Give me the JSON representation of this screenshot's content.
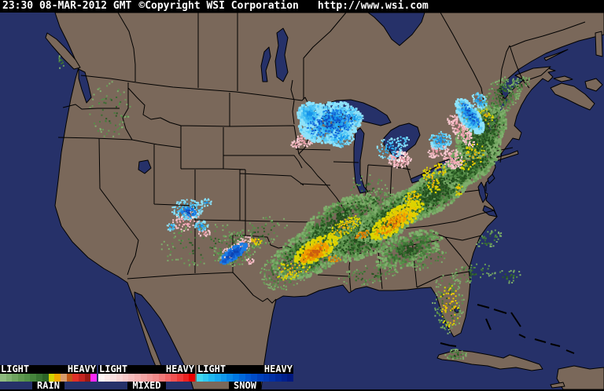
{
  "header": {
    "timestamp": "23:30 08-MAR-2012 GMT",
    "copyright": "©Copyright WSI Corporation",
    "url": "http://www.wsi.com"
  },
  "colors": {
    "header_bg": "#000000",
    "header_text": "#ffffff",
    "land": "#7a685a",
    "water": "#263169",
    "border": "#000000"
  },
  "legend": {
    "light_label": "LIGHT",
    "heavy_label": "HEAVY",
    "groups": [
      {
        "label": "RAIN",
        "colors": [
          "#8fbc7f",
          "#7fb06f",
          "#6fa45f",
          "#5f984f",
          "#539047",
          "#45843b",
          "#387431",
          "#2c6427",
          "#d4d400",
          "#f0a800",
          "#d89c6c",
          "#c05818",
          "#e03028",
          "#c42420",
          "#9c1814",
          "#f828f8"
        ]
      },
      {
        "label": "MIXED",
        "colors": [
          "#fcf4f4",
          "#fbe9e9",
          "#fadede",
          "#f9d3d3",
          "#f8c8c8",
          "#f7bdbd",
          "#f6b1b1",
          "#f5a5a5",
          "#f49898",
          "#f38b8b",
          "#f27a7a",
          "#f16666",
          "#f05252",
          "#ee3a3a",
          "#ec2222",
          "#e80000"
        ]
      },
      {
        "label": "SNOW",
        "colors": [
          "#40d8f0",
          "#30c8f0",
          "#20b8f0",
          "#18a8f0",
          "#1098ec",
          "#0888e8",
          "#0078e4",
          "#0068dc",
          "#0058d4",
          "#004cc8",
          "#0040bc",
          "#0038b0",
          "#0030a4",
          "#002898",
          "#00208c",
          "#001880"
        ]
      }
    ]
  },
  "radar": {
    "palettes": {
      "g": [
        "#7fae6c",
        "#699e58",
        "#558e48",
        "#467e3c",
        "#386e30",
        "#2c5c26",
        "#24501f"
      ],
      "gd": [
        "#2a5a22",
        "#1f4a1b",
        "#244f1e"
      ],
      "y": [
        "#dcd400",
        "#e9c800",
        "#f0b400"
      ],
      "o": [
        "#f09c00",
        "#e07c00",
        "#cc5c10"
      ],
      "p": [
        "#f8c8d0",
        "#f4b0bc",
        "#f09cac"
      ],
      "w": [
        "#f8eeee",
        "#fce4e4"
      ],
      "c": [
        "#8ee2fa",
        "#55c8f6",
        "#2fb0f0",
        "#1692ea"
      ],
      "b": [
        "#1c7ce4",
        "#1058cc",
        "#0c44b4"
      ]
    },
    "blobs": [
      [
        140,
        142,
        26,
        38,
        0,
        "g",
        70,
        2
      ],
      [
        78,
        78,
        4,
        10,
        0,
        "g",
        12,
        2
      ],
      [
        258,
        312,
        55,
        28,
        -10,
        "g",
        110,
        2
      ],
      [
        300,
        316,
        30,
        22,
        -30,
        "g",
        160,
        2
      ],
      [
        330,
        298,
        38,
        18,
        -25,
        "g",
        80,
        2
      ],
      [
        362,
        345,
        33,
        24,
        -20,
        "g",
        190,
        2
      ],
      [
        395,
        322,
        52,
        28,
        -25,
        "g",
        650,
        3
      ],
      [
        432,
        282,
        55,
        25,
        -30,
        "g",
        650,
        3
      ],
      [
        468,
        300,
        55,
        24,
        -28,
        "g",
        750,
        3
      ],
      [
        520,
        318,
        45,
        20,
        -22,
        "g",
        380,
        3
      ],
      [
        470,
        350,
        40,
        12,
        -10,
        "g",
        90,
        2
      ],
      [
        468,
        242,
        28,
        20,
        0,
        "g",
        55,
        2
      ],
      [
        470,
        262,
        40,
        16,
        -30,
        "g",
        140,
        2
      ],
      [
        505,
        272,
        60,
        22,
        -33,
        "g",
        850,
        3
      ],
      [
        555,
        243,
        55,
        24,
        -36,
        "g",
        850,
        3
      ],
      [
        600,
        205,
        45,
        24,
        -42,
        "g",
        750,
        3
      ],
      [
        612,
        168,
        40,
        26,
        -50,
        "g",
        650,
        3
      ],
      [
        638,
        122,
        28,
        20,
        -45,
        "g",
        240,
        2
      ],
      [
        660,
        108,
        16,
        8,
        -30,
        "g",
        40,
        2
      ],
      [
        570,
        385,
        20,
        40,
        0,
        "g",
        130,
        2
      ],
      [
        600,
        348,
        26,
        12,
        -10,
        "g",
        55,
        2
      ],
      [
        645,
        352,
        22,
        9,
        0,
        "g",
        30,
        2
      ],
      [
        580,
        452,
        14,
        7,
        0,
        "g",
        45,
        2
      ],
      [
        622,
        305,
        18,
        10,
        -30,
        "g",
        45,
        2
      ],
      [
        545,
        330,
        25,
        12,
        -20,
        "g",
        65,
        2
      ],
      [
        505,
        272,
        50,
        16,
        -33,
        "gd",
        230,
        2
      ],
      [
        555,
        243,
        45,
        18,
        -36,
        "gd",
        230,
        2
      ],
      [
        600,
        205,
        38,
        18,
        -42,
        "gd",
        200,
        2
      ],
      [
        612,
        168,
        32,
        20,
        -50,
        "gd",
        180,
        2
      ],
      [
        432,
        282,
        40,
        18,
        -30,
        "gd",
        160,
        2
      ],
      [
        395,
        322,
        40,
        20,
        -25,
        "gd",
        160,
        2
      ],
      [
        468,
        300,
        45,
        18,
        -28,
        "gd",
        180,
        2
      ],
      [
        372,
        342,
        25,
        13,
        -20,
        "y",
        65,
        2
      ],
      [
        402,
        318,
        30,
        13,
        -28,
        "y",
        240,
        3
      ],
      [
        438,
        290,
        25,
        10,
        -30,
        "y",
        110,
        2
      ],
      [
        505,
        280,
        40,
        14,
        -33,
        "y",
        300,
        3
      ],
      [
        525,
        252,
        12,
        10,
        -30,
        "y",
        55,
        2
      ],
      [
        549,
        230,
        9,
        18,
        -25,
        "y",
        65,
        2
      ],
      [
        560,
        215,
        6,
        10,
        -40,
        "y",
        28,
        2
      ],
      [
        600,
        200,
        20,
        14,
        -45,
        "y",
        55,
        2
      ],
      [
        583,
        242,
        6,
        8,
        0,
        "y",
        18,
        2
      ],
      [
        572,
        390,
        13,
        28,
        0,
        "y",
        55,
        2
      ],
      [
        325,
        307,
        9,
        5,
        0,
        "y",
        22,
        2
      ],
      [
        618,
        148,
        8,
        12,
        -40,
        "y",
        22,
        2
      ],
      [
        400,
        322,
        20,
        8,
        -28,
        "o",
        100,
        3
      ],
      [
        497,
        287,
        24,
        8,
        -34,
        "o",
        85,
        2
      ],
      [
        425,
        330,
        8,
        5,
        0,
        "o",
        22,
        2
      ],
      [
        460,
        300,
        10,
        5,
        -30,
        "o",
        28,
        2
      ],
      [
        388,
        178,
        11,
        9,
        0,
        "p",
        65,
        2
      ],
      [
        376,
        184,
        6,
        5,
        0,
        "p",
        22,
        2
      ],
      [
        508,
        203,
        15,
        11,
        0,
        "p",
        120,
        2
      ],
      [
        556,
        192,
        13,
        9,
        -20,
        "p",
        75,
        2
      ],
      [
        586,
        166,
        9,
        26,
        -38,
        "p",
        150,
        2
      ],
      [
        576,
        203,
        12,
        14,
        -30,
        "p",
        110,
        2
      ],
      [
        237,
        281,
        20,
        12,
        -20,
        "p",
        65,
        2
      ],
      [
        300,
        317,
        24,
        9,
        -35,
        "p",
        95,
        2
      ],
      [
        260,
        296,
        8,
        6,
        0,
        "p",
        22,
        2
      ],
      [
        318,
        333,
        6,
        4,
        0,
        "p",
        14,
        2
      ],
      [
        240,
        272,
        12,
        8,
        0,
        "w",
        28,
        2
      ],
      [
        296,
        320,
        16,
        6,
        -35,
        "w",
        22,
        2
      ],
      [
        510,
        200,
        8,
        6,
        0,
        "w",
        18,
        2
      ],
      [
        420,
        156,
        40,
        26,
        -10,
        "c",
        850,
        3
      ],
      [
        394,
        146,
        16,
        16,
        0,
        "c",
        240,
        3
      ],
      [
        434,
        176,
        16,
        12,
        0,
        "c",
        170,
        2
      ],
      [
        452,
        150,
        12,
        7,
        0,
        "c",
        55,
        2
      ],
      [
        495,
        190,
        16,
        14,
        0,
        "c",
        85,
        2
      ],
      [
        512,
        180,
        9,
        7,
        0,
        "c",
        32,
        2
      ],
      [
        560,
        179,
        14,
        12,
        0,
        "c",
        130,
        2
      ],
      [
        597,
        148,
        12,
        26,
        -36,
        "c",
        280,
        3
      ],
      [
        610,
        128,
        8,
        12,
        -36,
        "c",
        75,
        2
      ],
      [
        238,
        267,
        20,
        13,
        0,
        "c",
        160,
        2
      ],
      [
        256,
        288,
        9,
        7,
        0,
        "c",
        45,
        2
      ],
      [
        218,
        289,
        6,
        5,
        0,
        "c",
        22,
        2
      ],
      [
        262,
        258,
        7,
        5,
        0,
        "c",
        28,
        2
      ],
      [
        420,
        158,
        30,
        18,
        -10,
        "b",
        190,
        2
      ],
      [
        297,
        323,
        20,
        7,
        -35,
        "b",
        150,
        3
      ],
      [
        240,
        270,
        10,
        6,
        0,
        "b",
        38,
        2
      ],
      [
        598,
        146,
        6,
        18,
        -36,
        "b",
        55,
        2
      ]
    ]
  }
}
